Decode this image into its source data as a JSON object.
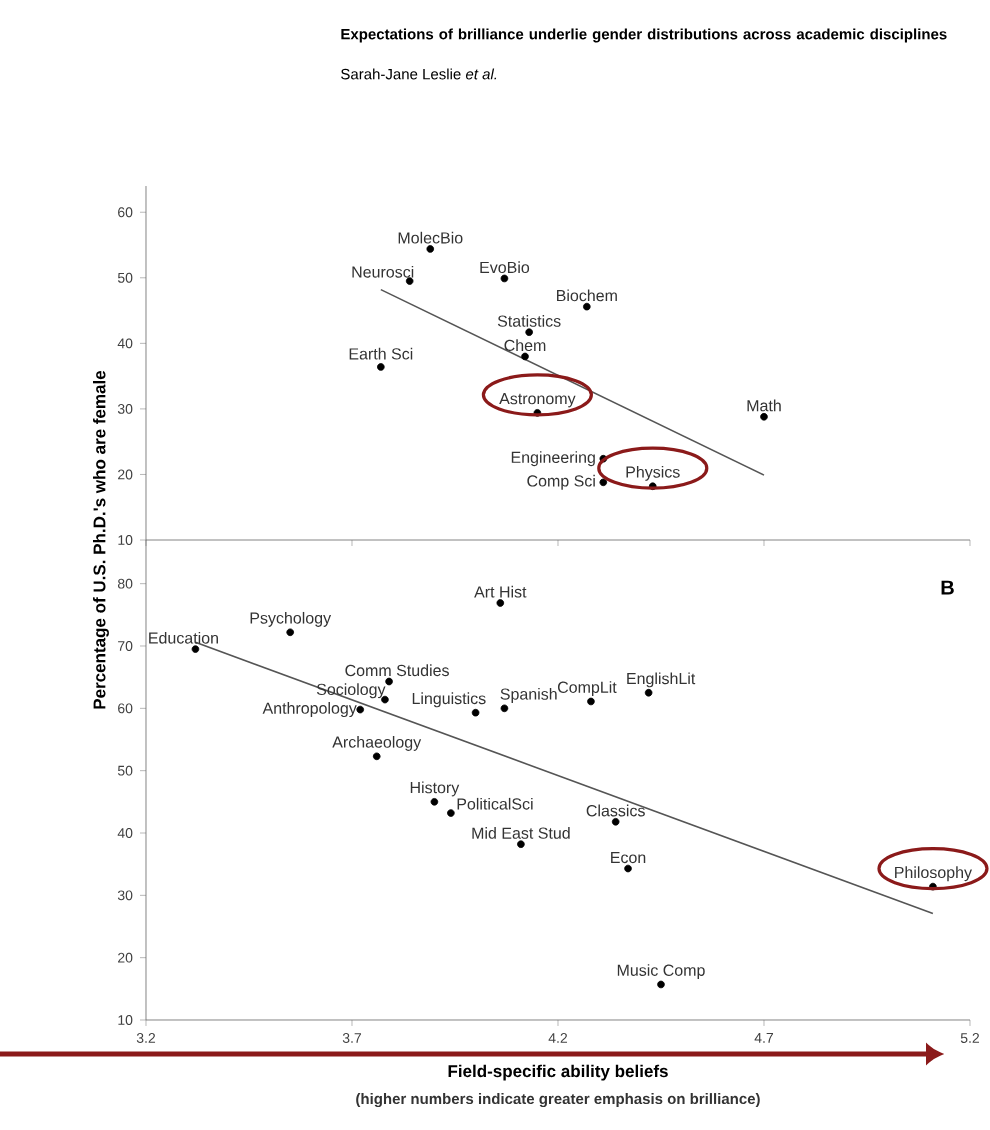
{
  "chart_data": [
    {
      "type": "scatter",
      "title": "Expectations of brilliance underlie gender distributions across academic disciplines",
      "subtitle": "Sarah-Jane Leslie *et al.*",
      "xlim": [
        3.2,
        5.2
      ],
      "xticks": [
        3.2,
        3.7,
        4.2,
        4.7,
        5.2
      ],
      "ylim": [
        10,
        64
      ],
      "yticks": [
        10,
        20,
        30,
        40,
        50,
        60
      ],
      "tick_labels": "y",
      "series": [
        {
          "marker": "circle",
          "color": "#000000",
          "x": [
            3.89,
            3.84,
            4.07,
            4.27,
            4.13,
            4.12,
            3.77,
            4.15,
            4.7,
            4.31,
            4.31,
            4.43
          ],
          "values": [
            54.4,
            49.5,
            49.9,
            45.6,
            41.7,
            38.0,
            36.4,
            29.4,
            28.8,
            22.4,
            18.8,
            18.2
          ]
        },
        {
          "type": "line",
          "color": "#555555",
          "x": [
            3.77,
            4.7
          ],
          "values": [
            48.2,
            19.9
          ]
        }
      ],
      "annotations": [
        {
          "text": "MolecBio",
          "x": 3.89,
          "y": 54.4
        },
        {
          "text": "Neurosci",
          "x": 3.84,
          "y": 49.5
        },
        {
          "text": "EvoBio",
          "x": 4.07,
          "y": 49.9
        },
        {
          "text": "Biochem",
          "x": 4.27,
          "y": 45.6
        },
        {
          "text": "Statistics",
          "x": 4.13,
          "y": 41.7
        },
        {
          "text": "Chem",
          "x": 4.12,
          "y": 38.0
        },
        {
          "text": "Earth Sci",
          "x": 3.77,
          "y": 36.4
        },
        {
          "text": "Astronomy",
          "x": 4.15,
          "y": 29.4
        },
        {
          "text": "Math",
          "x": 4.7,
          "y": 28.8
        },
        {
          "text": "Engineering",
          "x": 4.31,
          "y": 22.4
        },
        {
          "text": "Comp Sci",
          "x": 4.31,
          "y": 18.8
        },
        {
          "text": "Physics",
          "x": 4.43,
          "y": 18.2
        }
      ]
    },
    {
      "type": "scatter",
      "xlabel": "Field-specific ability beliefs",
      "ylabel": "Percentage of U.S. Ph.D.'s who are female",
      "xlim": [
        3.2,
        5.2
      ],
      "xticks": [
        3.2,
        3.7,
        4.2,
        4.7,
        5.2
      ],
      "ylim": [
        10,
        87
      ],
      "yticks": [
        10,
        20,
        30,
        40,
        50,
        60,
        70,
        80
      ],
      "series": [
        {
          "marker": "circle",
          "color": "#000000",
          "x": [
            3.32,
            3.55,
            4.06,
            3.79,
            3.78,
            3.72,
            3.76,
            4.0,
            4.07,
            4.28,
            4.42,
            3.9,
            3.94,
            4.11,
            4.34,
            4.37,
            5.11,
            4.45
          ],
          "values": [
            69.5,
            72.2,
            76.9,
            64.3,
            61.4,
            59.8,
            52.3,
            59.3,
            60.0,
            61.1,
            62.5,
            45.0,
            43.2,
            38.2,
            41.8,
            34.3,
            31.4,
            15.7
          ]
        },
        {
          "type": "line",
          "color": "#555555",
          "x": [
            3.32,
            5.11
          ],
          "values": [
            70.6,
            27.1
          ]
        }
      ],
      "annotations": [
        {
          "text": "Education",
          "x": 3.32,
          "y": 69.5
        },
        {
          "text": "Psychology",
          "x": 3.55,
          "y": 72.2
        },
        {
          "text": "Art Hist",
          "x": 4.06,
          "y": 76.9
        },
        {
          "text": "Comm Studies",
          "x": 3.79,
          "y": 64.3
        },
        {
          "text": "Sociology",
          "x": 3.78,
          "y": 61.4
        },
        {
          "text": "Anthropology",
          "x": 3.72,
          "y": 59.8
        },
        {
          "text": "Archaeology",
          "x": 3.76,
          "y": 52.3
        },
        {
          "text": "Linguistics",
          "x": 4.0,
          "y": 59.3
        },
        {
          "text": "Spanish",
          "x": 4.07,
          "y": 60.0
        },
        {
          "text": "CompLit",
          "x": 4.28,
          "y": 61.1
        },
        {
          "text": "EnglishLit",
          "x": 4.42,
          "y": 62.5
        },
        {
          "text": "History",
          "x": 3.9,
          "y": 45.0
        },
        {
          "text": "PoliticalSci",
          "x": 3.94,
          "y": 43.2
        },
        {
          "text": "Mid East Stud",
          "x": 4.11,
          "y": 38.2
        },
        {
          "text": "Classics",
          "x": 4.34,
          "y": 41.8
        },
        {
          "text": "Econ",
          "x": 4.37,
          "y": 34.3
        },
        {
          "text": "Philosophy",
          "x": 5.11,
          "y": 31.4
        },
        {
          "text": "Music Comp",
          "x": 4.45,
          "y": 15.7
        },
        "B",
        "(higher numbers indicate greater emphasis on brilliance)"
      ]
    }
  ]
}
